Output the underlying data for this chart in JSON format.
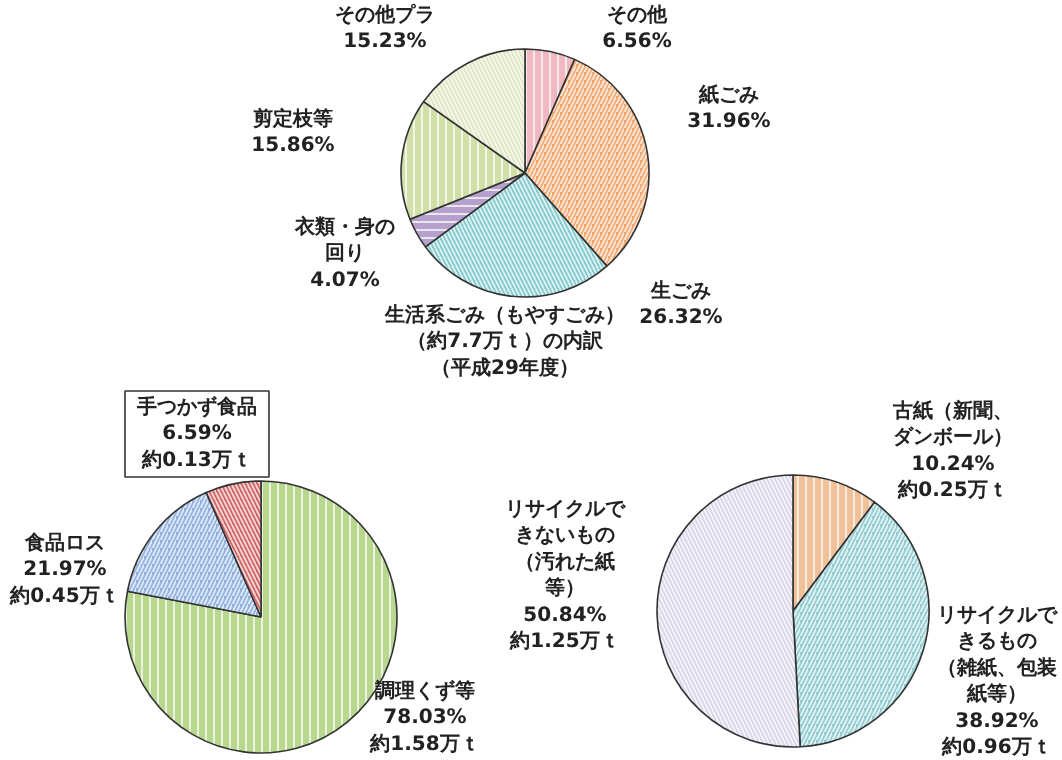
{
  "chart_data": [
    {
      "type": "pie",
      "title": "生活系ごみ（もやすごみ）（約7.7万ｔ）の内訳（平成29年度）",
      "categories": [
        "その他",
        "紙ごみ",
        "生ごみ",
        "衣類・身の回り",
        "剪定枝等",
        "その他プラ"
      ],
      "values": [
        6.56,
        31.96,
        26.32,
        4.07,
        15.86,
        15.23
      ],
      "colors": [
        "#f0b8c0",
        "#f5a870",
        "#80c8cc",
        "#b8a0cc",
        "#d0e0a8",
        "#e0e4c0"
      ],
      "value_labels": [
        "6.56%",
        "31.96%",
        "26.32%",
        "4.07%",
        "15.86%",
        "15.23%"
      ]
    },
    {
      "type": "pie",
      "categories": [
        "調理くず等",
        null,
        "手つかず食品"
      ],
      "values": [
        78.03,
        15.38,
        6.59
      ],
      "colors": [
        "#b8d890",
        "#90b0e0",
        "#d06060"
      ],
      "value_labels": [
        "78.03%約1.58万ｔ",
        null,
        "6.59%約0.13万ｔ"
      ],
      "annotations": [
        "食品ロス21.97%約0.45万ｔ"
      ]
    },
    {
      "type": "pie",
      "categories": [
        "古紙（新聞、ダンボール）",
        "リサイクルできるもの（雑紙、包装紙等）",
        "リサイクルできないもの（汚れた紙等）"
      ],
      "values": [
        10.24,
        38.92,
        50.84
      ],
      "colors": [
        "#f0c098",
        "#90ccd0",
        "#d8d4e8"
      ],
      "value_labels": [
        "10.24%約0.25万ｔ",
        "38.92%約0.96万ｔ",
        "50.84%約1.25万ｔ"
      ]
    }
  ]
}
